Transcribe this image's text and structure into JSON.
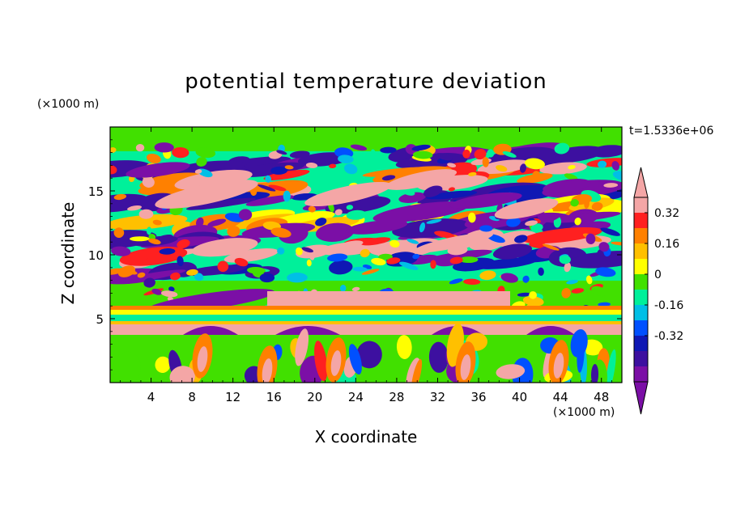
{
  "chart_data": {
    "type": "heatmap",
    "title": "potential temperature deviation",
    "xlabel": "X coordinate",
    "ylabel": "Z coordinate",
    "x_scale_note": "(×1000 m)",
    "y_scale_note": "(×1000 m)",
    "time_label": "t=1.5336e+06",
    "xlim": [
      0,
      50
    ],
    "ylim": [
      0,
      20
    ],
    "x_ticks": [
      4,
      8,
      12,
      16,
      20,
      24,
      28,
      32,
      36,
      40,
      44,
      48
    ],
    "y_ticks": [
      5,
      10,
      15
    ],
    "colorbar": {
      "levels": [
        -0.48,
        -0.4,
        -0.32,
        -0.24,
        -0.16,
        -0.08,
        0,
        0.08,
        0.16,
        0.24,
        0.32,
        0.4
      ],
      "colors": [
        "#7b0fa6",
        "#3d10a0",
        "#0f18b4",
        "#0050ff",
        "#00bfe6",
        "#00f09a",
        "#41e000",
        "#ffff00",
        "#ffc000",
        "#ff8000",
        "#ff2020",
        "#f4a6a6"
      ],
      "tick_labels": [
        "-0.32",
        "-0.16",
        "0",
        "0.16",
        "0.32"
      ],
      "tick_values": [
        -0.32,
        -0.16,
        0,
        0.16,
        0.32
      ],
      "extend": "both"
    }
  }
}
